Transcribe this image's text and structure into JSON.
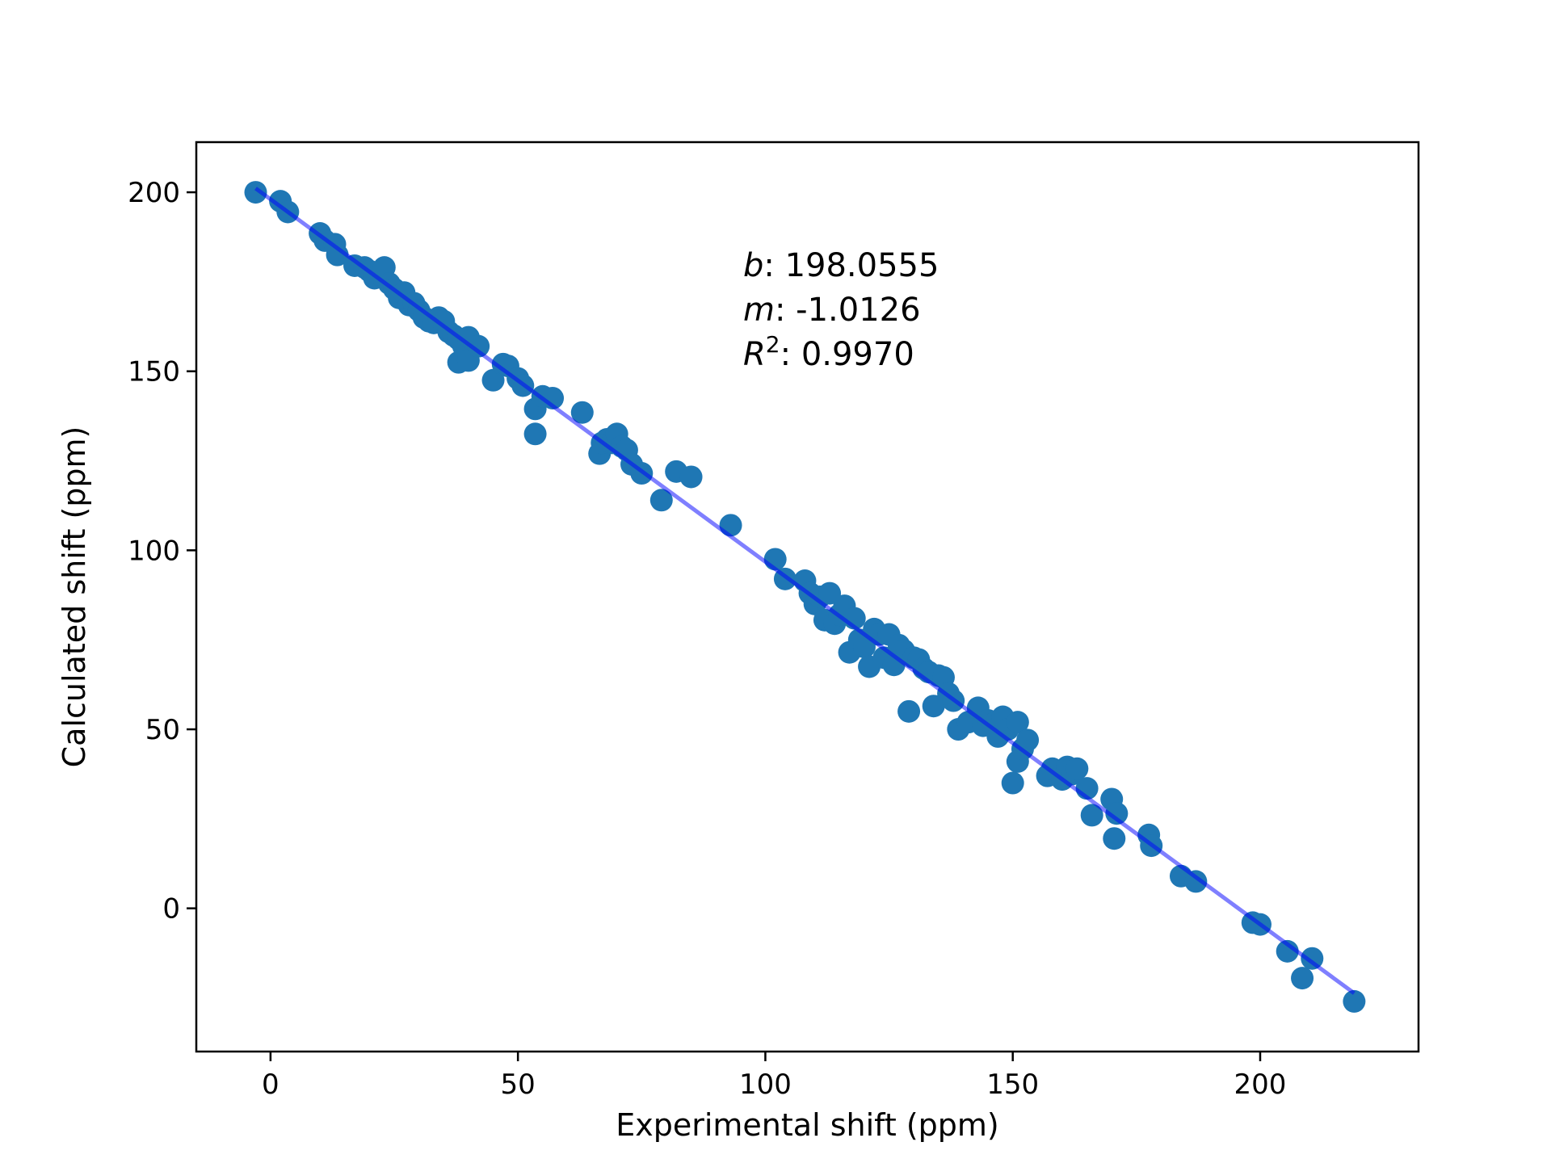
{
  "chart_data": {
    "type": "scatter",
    "xlabel": "Experimental shift (ppm)",
    "ylabel": "Calculated shift (ppm)",
    "xlim": [
      -15,
      232
    ],
    "ylim": [
      -40,
      214
    ],
    "xticks": [
      0,
      50,
      100,
      150,
      200
    ],
    "yticks": [
      0,
      50,
      100,
      150,
      200
    ],
    "colors": {
      "points": "#1f77b4",
      "fit_line": "#0000ff"
    },
    "fit": {
      "intercept": 198.0555,
      "slope": -1.0126,
      "x_range": [
        -3,
        219
      ]
    },
    "annotations": [
      {
        "symbol": "b",
        "sup": "",
        "text": ": 198.0555"
      },
      {
        "symbol": "m",
        "sup": "",
        "text": ": -1.0126"
      },
      {
        "symbol": "R",
        "sup": "2",
        "text": ": 0.9970"
      }
    ],
    "x": [
      -3,
      2,
      3.5,
      10,
      11,
      13,
      13.5,
      17,
      19,
      20,
      21,
      22,
      23,
      24,
      25,
      26,
      27,
      28,
      29,
      30,
      31,
      32,
      33,
      34,
      35,
      36,
      37,
      38,
      38,
      39,
      40,
      40,
      42,
      45,
      47,
      48,
      50,
      51,
      53.5,
      53.5,
      55,
      57,
      63,
      66.5,
      67,
      68,
      69,
      70,
      71,
      72,
      73,
      75,
      79,
      82,
      85,
      93,
      102,
      104,
      108,
      109,
      110,
      111,
      112,
      113,
      114,
      115,
      116,
      117,
      118,
      119,
      120,
      121,
      122,
      123,
      124,
      125,
      126,
      127,
      128,
      129,
      130,
      131,
      132,
      133,
      134,
      135,
      136,
      137,
      138,
      139,
      141,
      143,
      144,
      145,
      146,
      147,
      148,
      149,
      150,
      151,
      151,
      152,
      153,
      157,
      158,
      160,
      161,
      162,
      163,
      165,
      166,
      170,
      170.5,
      171,
      177.5,
      178,
      184,
      187,
      198.5,
      200,
      205.5,
      208.5,
      210.5,
      219
    ],
    "y": [
      200,
      197.5,
      194.5,
      188.5,
      186.5,
      185.5,
      182.5,
      179.5,
      179,
      178,
      176,
      177,
      179,
      174.5,
      173,
      170.5,
      172,
      168.5,
      169,
      167,
      165,
      164,
      163.5,
      165,
      164,
      161,
      160,
      152.5,
      159,
      157,
      159.5,
      153,
      157,
      147.5,
      152,
      151.5,
      148,
      146,
      132.5,
      139.5,
      143,
      142.5,
      138.5,
      127,
      130,
      131,
      130,
      132.5,
      129,
      128,
      124,
      121.5,
      114,
      122,
      120.5,
      107,
      97.5,
      92,
      91.5,
      88,
      85,
      87,
      80.5,
      88,
      79.5,
      82,
      84.5,
      71.5,
      81,
      75,
      73,
      67.5,
      78,
      76.5,
      70,
      76.5,
      68,
      73.5,
      72,
      55,
      70,
      69.5,
      67,
      66,
      56.5,
      65,
      64.5,
      60,
      58,
      50,
      52,
      56,
      51,
      52.5,
      51.5,
      48,
      53.5,
      50,
      35,
      52,
      41,
      44.5,
      47,
      37,
      39,
      36,
      39.5,
      37.5,
      39,
      33.5,
      26,
      30.5,
      19.5,
      26.5,
      20.5,
      17.5,
      9,
      7.5,
      -4,
      -4.5,
      -12,
      -19.5,
      -14,
      -26
    ]
  }
}
